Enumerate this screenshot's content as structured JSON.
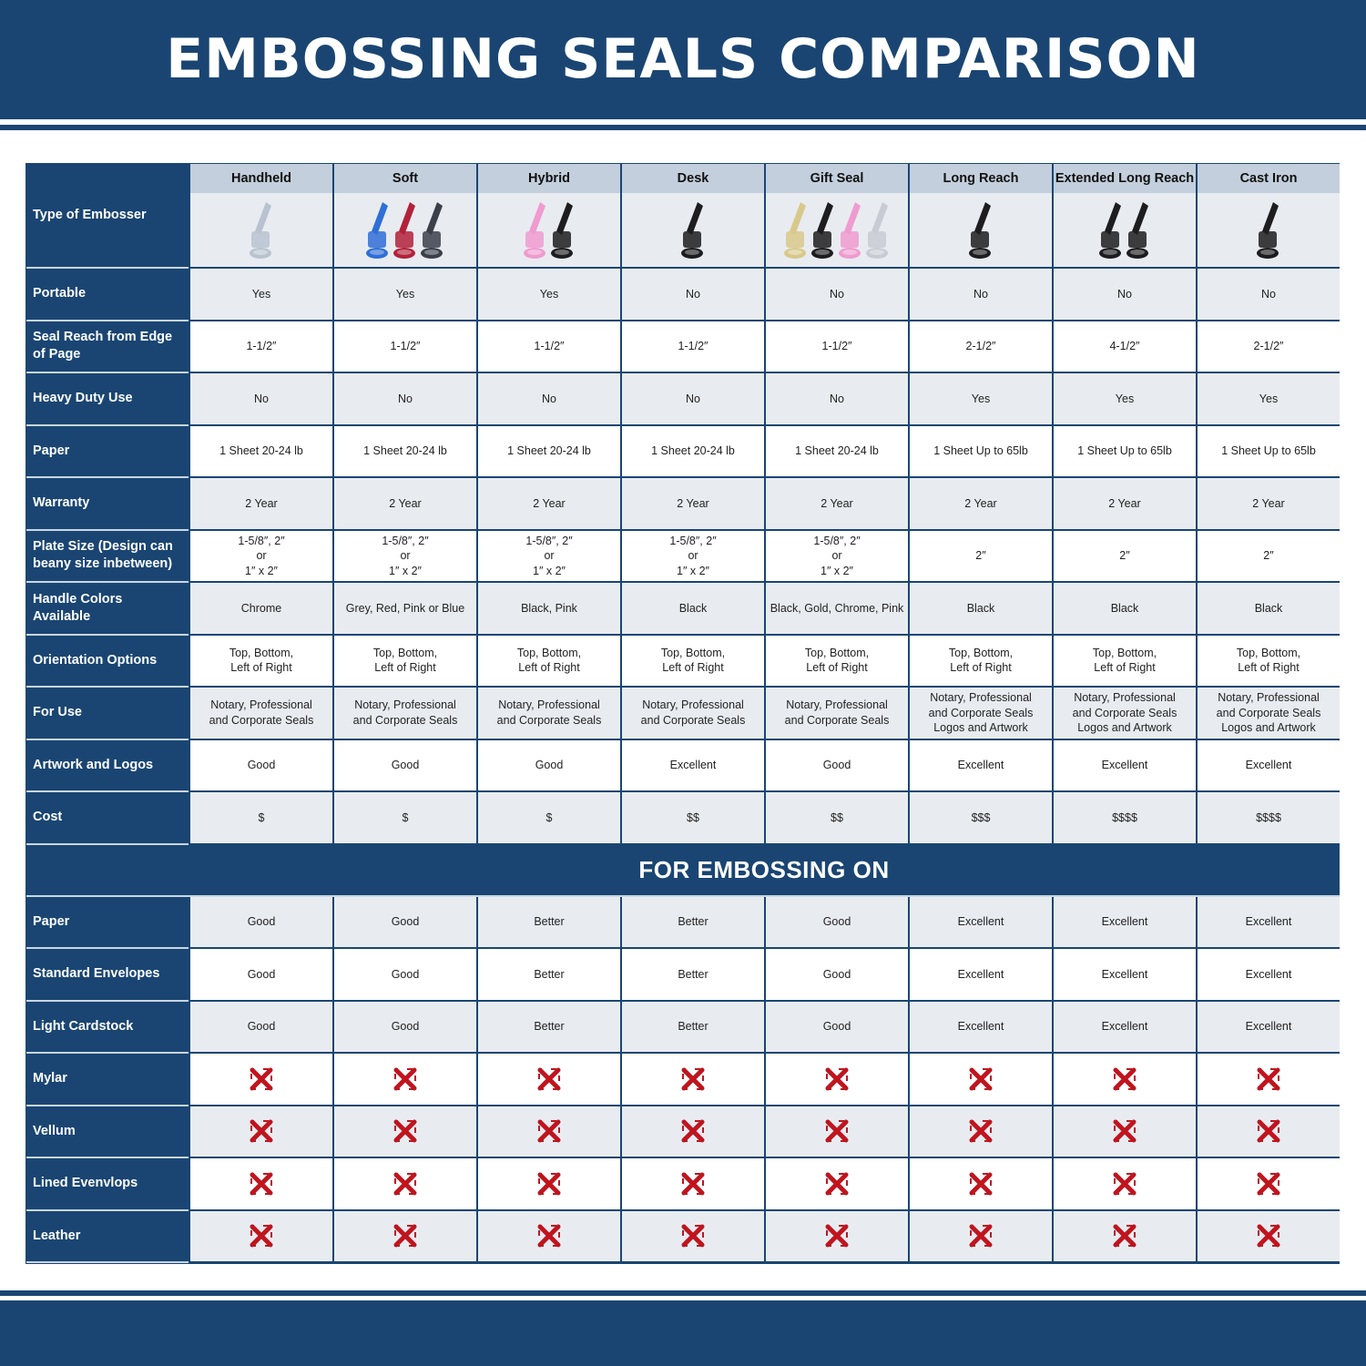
{
  "title": "EMBOSSING SEALS COMPARISON",
  "corner_label": "Type of Embosser",
  "columns": [
    {
      "name": "Handheld",
      "image_colors": [
        "#b9c3d0"
      ]
    },
    {
      "name": "Soft",
      "image_colors": [
        "#2f6fd6",
        "#b3213a",
        "#3a3f4a"
      ]
    },
    {
      "name": "Hybrid",
      "image_colors": [
        "#f09bd0",
        "#1d1d1f"
      ]
    },
    {
      "name": "Desk",
      "image_colors": [
        "#1d1d1f"
      ]
    },
    {
      "name": "Gift Seal",
      "image_colors": [
        "#d8c98a",
        "#1d1d1f",
        "#f09bd0",
        "#c8ccd2"
      ]
    },
    {
      "name": "Long Reach",
      "image_colors": [
        "#1d1d1f"
      ]
    },
    {
      "name": "Extended Long Reach",
      "image_colors": [
        "#1d1d1f",
        "#1d1d1f"
      ]
    },
    {
      "name": "Cast Iron",
      "image_colors": [
        "#1d1d1f"
      ]
    }
  ],
  "rows": [
    {
      "label": "Portable",
      "values": [
        "Yes",
        "Yes",
        "Yes",
        "No",
        "No",
        "No",
        "No",
        "No"
      ]
    },
    {
      "label": "Seal Reach from Edge of Page",
      "values": [
        "1-1/2″",
        "1-1/2″",
        "1-1/2″",
        "1-1/2″",
        "1-1/2″",
        "2-1/2″",
        "4-1/2″",
        "2-1/2″"
      ]
    },
    {
      "label": "Heavy Duty Use",
      "values": [
        "No",
        "No",
        "No",
        "No",
        "No",
        "Yes",
        "Yes",
        "Yes"
      ]
    },
    {
      "label": "Paper",
      "values": [
        "1 Sheet 20-24 lb",
        "1 Sheet 20-24 lb",
        "1 Sheet 20-24 lb",
        "1 Sheet 20-24 lb",
        "1 Sheet 20-24 lb",
        "1 Sheet Up to 65lb",
        "1 Sheet Up to 65lb",
        "1 Sheet Up to 65lb"
      ]
    },
    {
      "label": "Warranty",
      "values": [
        "2 Year",
        "2 Year",
        "2 Year",
        "2 Year",
        "2 Year",
        "2 Year",
        "2 Year",
        "2 Year"
      ]
    },
    {
      "label": "Plate Size (Design can beany size inbetween)",
      "values": [
        "1-5/8″, 2″\nor\n1″ x 2″",
        "1-5/8″, 2″\nor\n1″ x 2″",
        "1-5/8″, 2″\nor\n1″ x 2″",
        "1-5/8″, 2″\nor\n1″ x 2″",
        "1-5/8″, 2″\nor\n1″ x 2″",
        "2″",
        "2″",
        "2″"
      ]
    },
    {
      "label": "Handle Colors Available",
      "values": [
        "Chrome",
        "Grey, Red, Pink or Blue",
        "Black, Pink",
        "Black",
        "Black, Gold, Chrome, Pink",
        "Black",
        "Black",
        "Black"
      ]
    },
    {
      "label": "Orientation Options",
      "values": [
        "Top, Bottom,\nLeft of Right",
        "Top, Bottom,\nLeft of Right",
        "Top, Bottom,\nLeft of Right",
        "Top, Bottom,\nLeft of Right",
        "Top, Bottom,\nLeft of Right",
        "Top, Bottom,\nLeft of Right",
        "Top, Bottom,\nLeft of Right",
        "Top, Bottom,\nLeft of Right"
      ]
    },
    {
      "label": "For Use",
      "values": [
        "Notary, Professional\nand Corporate Seals",
        "Notary, Professional\nand Corporate Seals",
        "Notary, Professional\nand Corporate Seals",
        "Notary, Professional\nand Corporate Seals",
        "Notary, Professional\nand Corporate Seals",
        "Notary, Professional\nand Corporate Seals\nLogos and Artwork",
        "Notary, Professional\nand Corporate Seals\nLogos and Artwork",
        "Notary, Professional\nand Corporate Seals\nLogos and Artwork"
      ]
    },
    {
      "label": "Artwork and Logos",
      "values": [
        "Good",
        "Good",
        "Good",
        "Excellent",
        "Good",
        "Excellent",
        "Excellent",
        "Excellent"
      ]
    },
    {
      "label": "Cost",
      "values": [
        "$",
        "$",
        "$",
        "$$",
        "$$",
        "$$$",
        "$$$$",
        "$$$$"
      ]
    }
  ],
  "section_title": "FOR EMBOSSING ON",
  "section_rows": [
    {
      "label": "Paper",
      "values": [
        "Good",
        "Good",
        "Better",
        "Better",
        "Good",
        "Excellent",
        "Excellent",
        "Excellent"
      ]
    },
    {
      "label": "Standard Envelopes",
      "values": [
        "Good",
        "Good",
        "Better",
        "Better",
        "Good",
        "Excellent",
        "Excellent",
        "Excellent"
      ]
    },
    {
      "label": "Light Cardstock",
      "values": [
        "Good",
        "Good",
        "Better",
        "Better",
        "Good",
        "Excellent",
        "Excellent",
        "Excellent"
      ]
    },
    {
      "label": "Mylar",
      "values": [
        "x-icon",
        "x-icon",
        "x-icon",
        "x-icon",
        "x-icon",
        "x-icon",
        "x-icon",
        "x-icon"
      ]
    },
    {
      "label": "Vellum",
      "values": [
        "x-icon",
        "x-icon",
        "x-icon",
        "x-icon",
        "x-icon",
        "x-icon",
        "x-icon",
        "x-icon"
      ]
    },
    {
      "label": "Lined Evenvlops",
      "values": [
        "x-icon",
        "x-icon",
        "x-icon",
        "x-icon",
        "x-icon",
        "x-icon",
        "x-icon",
        "x-icon"
      ]
    },
    {
      "label": "Leather",
      "values": [
        "x-icon",
        "x-icon",
        "x-icon",
        "x-icon",
        "x-icon",
        "x-icon",
        "x-icon",
        "x-icon"
      ]
    }
  ],
  "colors": {
    "navy": "#1a4572",
    "header_gray": "#c3cfdc",
    "row_gray": "#e8ecf1",
    "x_red": "#c0141e"
  }
}
